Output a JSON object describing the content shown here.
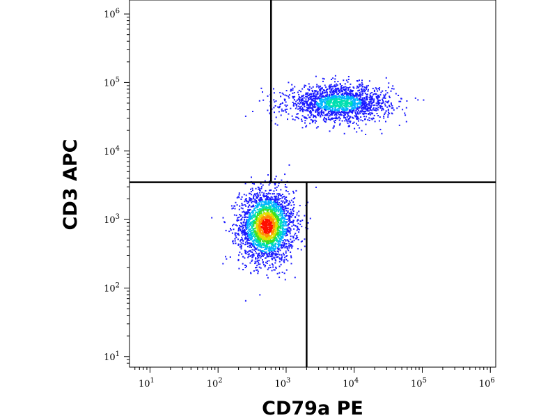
{
  "chart_data": {
    "type": "scatter",
    "title": "",
    "xlabel": "CD79a PE",
    "ylabel": "CD3 APC",
    "xscale": "log",
    "yscale": "log",
    "xlim": [
      5,
      1200000
    ],
    "ylim": [
      7,
      1600000
    ],
    "grid": false,
    "legend": "none",
    "colormap": "density (blue → cyan → green → yellow → red)",
    "x_ticks": [
      {
        "value": 10,
        "base": "10",
        "exp": "1"
      },
      {
        "value": 100,
        "base": "10",
        "exp": "2"
      },
      {
        "value": 1000,
        "base": "10",
        "exp": "3"
      },
      {
        "value": 10000,
        "base": "10",
        "exp": "4"
      },
      {
        "value": 100000,
        "base": "10",
        "exp": "5"
      },
      {
        "value": 1000000,
        "base": "10",
        "exp": "6"
      }
    ],
    "y_ticks": [
      {
        "value": 10,
        "base": "10",
        "exp": "1"
      },
      {
        "value": 100,
        "base": "10",
        "exp": "2"
      },
      {
        "value": 1000,
        "base": "10",
        "exp": "3"
      },
      {
        "value": 10000,
        "base": "10",
        "exp": "4"
      },
      {
        "value": 100000,
        "base": "10",
        "exp": "5"
      },
      {
        "value": 1000000,
        "base": "10",
        "exp": "6"
      }
    ],
    "quadrant_gates": {
      "horizontal_y": 3500,
      "upper_vertical_x": 600,
      "lower_vertical_x": 2000
    },
    "populations": [
      {
        "x_center": 520,
        "y_center": 800,
        "x_spread_log": 0.2,
        "y_spread_log": 0.26,
        "points": 2600
      },
      {
        "x_center": 6000,
        "y_center": 50000,
        "x_spread_log": 0.38,
        "y_spread_log": 0.13,
        "points": 1800
      }
    ],
    "colors": {
      "density": [
        "#1a1aff",
        "#00b4ff",
        "#00e0b0",
        "#40e020",
        "#e0e000",
        "#ff9000",
        "#ff1000"
      ],
      "gate_line": "#000000",
      "frame": "#000000"
    }
  }
}
